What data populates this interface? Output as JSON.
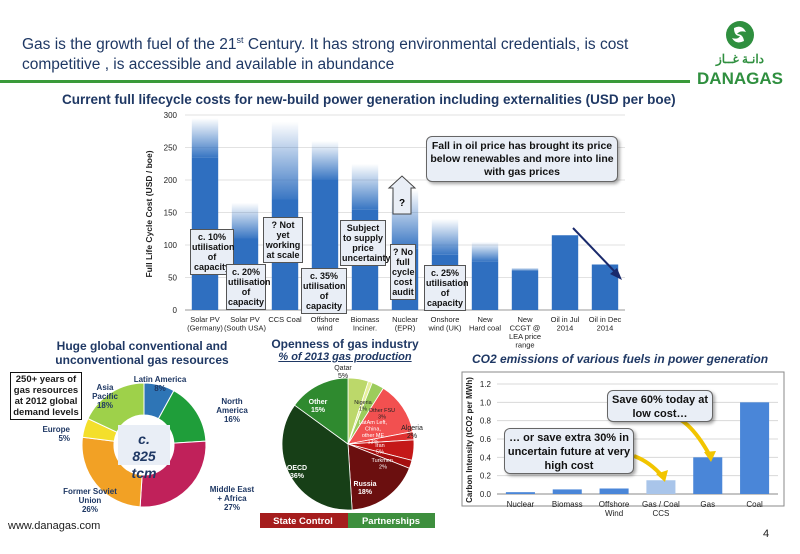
{
  "headline": {
    "part1": "Gas is the growth fuel of the 21",
    "sup": "st",
    "part2": " Century. It has strong environmental credentials, is cost competitive , is accessible and available in abundance"
  },
  "logo": {
    "arabic": "دانـة غــاز",
    "text": "DANAGAS"
  },
  "main_chart_title": "Current full lifecycle costs for new-build power generation including externalities (USD per boe)",
  "main_callouts": {
    "oil_price_note": "Fall in oil price has brought its price below renewables and more into line with gas prices",
    "solar_de": "c. 10% utilisation of capacity",
    "solar_za": "c. 20% utilisation of capacity",
    "ccs": "? Not yet working at scale",
    "offshore": "c. 35% utilisation of capacity",
    "biomass": "Subject to supply price uncertainty",
    "nuclear_top": "?",
    "nuclear": "? No full cycle cost audit",
    "onshore": "c. 25% utilisation of capacity"
  },
  "resources": {
    "title": "Huge global conventional and unconventional gas resources",
    "box": "250+ years of gas resources at 2012 global demand levels",
    "center": "c. 825 tcm"
  },
  "openness": {
    "title": "Openness of gas industry",
    "subtitle": "% of 2013 gas production",
    "legend_state": "State Control",
    "legend_partner": "Partnerships"
  },
  "co2": {
    "title": "CO2 emissions of various fuels in power generation",
    "bubble1": "Save 60% today at low cost…",
    "bubble2": "… or save extra 30% in uncertain future at very high cost"
  },
  "footer": {
    "url": "www.danagas.com",
    "page": "4"
  },
  "chart_data": [
    {
      "type": "bar",
      "title": "Current full lifecycle costs for new-build power generation including externalities (USD per boe)",
      "ylabel": "Full Life Cycle Cost (USD / boe)",
      "ylim": [
        0,
        300
      ],
      "yticks": [
        0,
        50,
        100,
        150,
        200,
        250,
        300
      ],
      "categories": [
        [
          "Solar PV",
          "(Germany)"
        ],
        [
          "Solar PV",
          "(South USA)"
        ],
        [
          "CCS Coal"
        ],
        [
          "Offshore",
          "wind"
        ],
        [
          "Biomass",
          "Inciner."
        ],
        [
          "Nuclear",
          "(EPR)"
        ],
        [
          "Onshore",
          "wind (UK)"
        ],
        [
          "New",
          "Hard coal"
        ],
        [
          "New",
          "CCGT @",
          "LEA price",
          "range"
        ],
        [
          "Oil in Jul",
          "2014"
        ],
        [
          "Oil in Dec",
          "2014"
        ]
      ],
      "values": [
        235,
        110,
        170,
        200,
        155,
        95,
        85,
        75,
        60,
        115,
        70
      ],
      "range_high": [
        295,
        165,
        290,
        260,
        225,
        185,
        140,
        105,
        65,
        115,
        70
      ]
    },
    {
      "type": "pie",
      "title": "Huge global conventional and unconventional gas resources",
      "labels": [
        "Latin America",
        "North America",
        "Middle East + Africa",
        "Former Soviet Union",
        "Europe",
        "Asia Pacific"
      ],
      "values": [
        8,
        16,
        27,
        26,
        5,
        18
      ],
      "value_labels": [
        "8%",
        "16%",
        "27%",
        "26%",
        "5%",
        "18%"
      ],
      "colors": [
        "#2e75b6",
        "#1f9e3a",
        "#c0215a",
        "#f2a125",
        "#f4df2b",
        "#9ed14a"
      ]
    },
    {
      "type": "pie",
      "title": "Openness of gas industry",
      "subtitle": "% of 2013 gas production",
      "labels": [
        "Qatar",
        "Nigeria",
        "Other FSU",
        "LatAm Left, China, other ME",
        "Algeria",
        "Iran",
        "Turkmen.",
        "Russia",
        "OECD",
        "Other"
      ],
      "values": [
        5,
        1,
        3,
        13,
        2,
        5,
        2,
        18,
        36,
        15
      ],
      "value_labels": [
        "5%",
        "1%",
        "3%",
        "13%",
        "2%",
        "5%",
        "2%",
        "18%",
        "36%",
        "15%"
      ],
      "colors": [
        "#bcd86a",
        "#e6ef9a",
        "#9ccc5c",
        "#f25050",
        "#e03030",
        "#c41818",
        "#a50e0e",
        "#6b0f0f",
        "#173f17",
        "#2f8a2f"
      ]
    },
    {
      "type": "bar",
      "title": "CO2 emissions of various fuels in power generation",
      "ylabel": "Carbon Intensity (tCO2 per MWh)",
      "ylim": [
        0,
        1.2
      ],
      "yticks": [
        "0.0",
        "0.2",
        "0.4",
        "0.6",
        "0.8",
        "1.0",
        "1.2"
      ],
      "categories": [
        [
          "Nuclear"
        ],
        [
          "Biomass"
        ],
        [
          "Offshore",
          "Wind"
        ],
        [
          "Gas / Coal",
          "CCS"
        ],
        [
          "Gas"
        ],
        [
          "Coal"
        ]
      ],
      "values": [
        0.02,
        0.05,
        0.06,
        0.15,
        0.4,
        1.0
      ]
    }
  ]
}
